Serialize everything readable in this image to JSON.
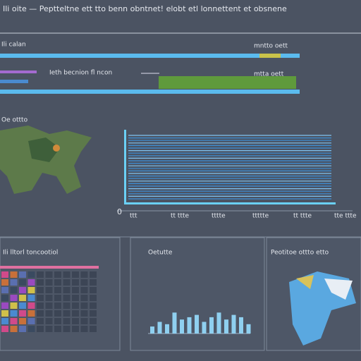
{
  "header": {
    "title": "Ili oite — Peptteltne ett tto benn obntnet! elobt etl lonnettent et obsnene"
  },
  "rows": [
    {
      "label": "Ili calan",
      "right": "mntto oett"
    },
    {
      "label": "Ieth becnion fl ncon",
      "right": "mtta oett"
    }
  ],
  "map": {
    "title": "Oe ottto"
  },
  "main_chart": {
    "origin": "0",
    "xlabels": [
      "ttt",
      "tt ttte",
      "tttte",
      "ttttte",
      "tt ttte",
      "tte ttte"
    ]
  },
  "panels": [
    {
      "title": "Ili lltorl toncootiol"
    },
    {
      "title": "Oetutte"
    },
    {
      "title": "Peotitoe ottto etto"
    }
  ],
  "chart_data": {
    "type": "bar",
    "values": [
      6,
      10,
      8,
      18,
      12,
      14,
      16,
      10,
      14,
      18,
      12,
      16,
      14,
      8
    ],
    "ylim": [
      0,
      20
    ],
    "color": "#8fd0f0"
  }
}
